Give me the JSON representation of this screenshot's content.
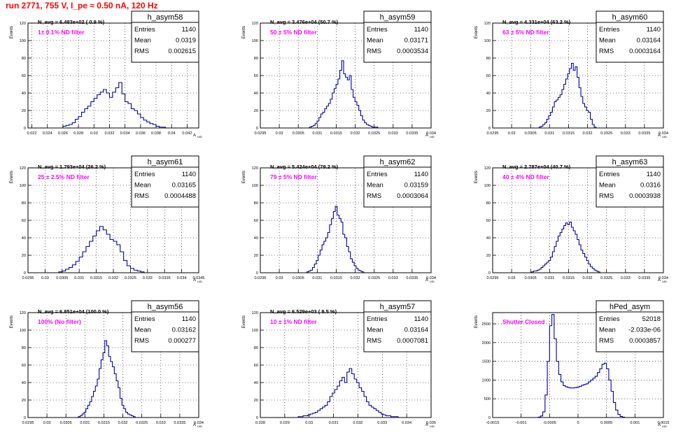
{
  "page_title": "run 2771,   755 V, I_pe ≈ 0.50 nA, 120 Hz",
  "colors": {
    "hist": "#000099",
    "title": "#ff0000",
    "note": "#ff00ff",
    "frame": "#000000"
  },
  "chart_data": [
    {
      "type": "bar",
      "name": "h_asym58",
      "stats": [
        [
          "Entries",
          "1140"
        ],
        [
          "Mean",
          "0.0319"
        ],
        [
          "RMS",
          "0.002615"
        ]
      ],
      "navg_label": "N_avg = 6.483e+02 ( 0.9 %)",
      "filter_label": "1± 0.1% ND filter",
      "xlabel": "A",
      "xlabel_sub": "UID",
      "ylabel": "Events",
      "xlim": [
        0.0215,
        0.0435
      ],
      "ylim": [
        0,
        120
      ],
      "xticks": [
        0.022,
        0.024,
        0.026,
        0.028,
        0.03,
        0.032,
        0.034,
        0.036,
        0.038,
        0.04,
        0.042
      ],
      "xtick_labels": [
        "0.022",
        "0.024",
        "0.026",
        "0.028",
        "0.03",
        "0.032",
        "0.034",
        "0.036",
        "0.038",
        "0.04",
        "0.042"
      ],
      "yticks": [
        0,
        20,
        40,
        60,
        80,
        100,
        120
      ],
      "x": [
        0.0262,
        0.0266,
        0.027,
        0.0274,
        0.0278,
        0.0282,
        0.0286,
        0.029,
        0.0294,
        0.0298,
        0.0302,
        0.0306,
        0.031,
        0.0314,
        0.0318,
        0.0322,
        0.0326,
        0.033,
        0.0334,
        0.0338,
        0.0342,
        0.0346,
        0.035,
        0.0354,
        0.0358,
        0.0362,
        0.0366,
        0.037,
        0.0374,
        0.0378,
        0.0382,
        0.0386,
        0.039
      ],
      "values": [
        2,
        3,
        4,
        6,
        10,
        13,
        18,
        22,
        25,
        30,
        34,
        38,
        41,
        44,
        40,
        35,
        41,
        46,
        52,
        39,
        30,
        28,
        22,
        20,
        16,
        12,
        9,
        7,
        5,
        4,
        2,
        1,
        1
      ]
    },
    {
      "type": "bar",
      "name": "h_asym59",
      "stats": [
        [
          "Entries",
          "1140"
        ],
        [
          "Mean",
          "0.03171"
        ],
        [
          "RMS",
          "0.0003534"
        ]
      ],
      "navg_label": "N_avg = 3.476e+04 (50.7 %)",
      "filter_label": "50 ± 5% ND filter",
      "xlabel": "A",
      "xlabel_sub": "UID",
      "ylabel": "Events",
      "xlim": [
        0.0295,
        0.034
      ],
      "ylim": [
        0,
        120
      ],
      "xticks": [
        0.0295,
        0.03,
        0.0305,
        0.031,
        0.0315,
        0.032,
        0.0325,
        0.033,
        0.0335,
        0.034
      ],
      "xtick_labels": [
        "0.0295",
        "0.03",
        "0.0305",
        "0.031",
        "0.0315",
        "0.032",
        "0.0325",
        "0.033",
        "0.0335",
        "0.034"
      ],
      "yticks": [
        0,
        20,
        40,
        60,
        80,
        100,
        120
      ],
      "x": [
        0.03082,
        0.03087,
        0.03092,
        0.03097,
        0.03102,
        0.03107,
        0.03112,
        0.03117,
        0.03122,
        0.03127,
        0.03132,
        0.03137,
        0.03142,
        0.03147,
        0.03152,
        0.03157,
        0.03162,
        0.03167,
        0.03172,
        0.03177,
        0.03182,
        0.03187,
        0.03192,
        0.03197,
        0.03202,
        0.03207,
        0.03212,
        0.03217,
        0.03222,
        0.03227,
        0.03232,
        0.03237,
        0.03242,
        0.03247,
        0.03252,
        0.03257
      ],
      "values": [
        1,
        2,
        3,
        5,
        8,
        12,
        16,
        18,
        22,
        25,
        28,
        33,
        40,
        45,
        50,
        56,
        66,
        77,
        62,
        58,
        55,
        60,
        44,
        35,
        30,
        26,
        20,
        14,
        9,
        6,
        4,
        3,
        2,
        1,
        1,
        1
      ]
    },
    {
      "type": "bar",
      "name": "h_asym60",
      "stats": [
        [
          "Entries",
          "1140"
        ],
        [
          "Mean",
          "0.03164"
        ],
        [
          "RMS",
          "0.0003164"
        ]
      ],
      "navg_label": "N_avg = 4.331e+04 (63.2 %)",
      "filter_label": "63 ± 5% ND filter",
      "xlabel": "A",
      "xlabel_sub": "UID",
      "ylabel": "Events",
      "xlim": [
        0.0295,
        0.034
      ],
      "ylim": [
        0,
        120
      ],
      "xticks": [
        0.0295,
        0.03,
        0.0305,
        0.031,
        0.0315,
        0.032,
        0.0325,
        0.033,
        0.0335,
        0.034
      ],
      "xtick_labels": [
        "0.0295",
        "0.03",
        "0.0305",
        "0.031",
        "0.0315",
        "0.032",
        "0.0325",
        "0.033",
        "0.0335",
        "0.034"
      ],
      "yticks": [
        0,
        20,
        40,
        60,
        80,
        100,
        120
      ],
      "x": [
        0.03075,
        0.0308,
        0.03085,
        0.0309,
        0.03095,
        0.031,
        0.03105,
        0.0311,
        0.03115,
        0.0312,
        0.03125,
        0.0313,
        0.03135,
        0.0314,
        0.03145,
        0.0315,
        0.03155,
        0.0316,
        0.03165,
        0.0317,
        0.03175,
        0.0318,
        0.03185,
        0.0319,
        0.03195,
        0.032,
        0.03205,
        0.0321,
        0.03215,
        0.0322
      ],
      "values": [
        1,
        2,
        4,
        6,
        10,
        14,
        18,
        24,
        30,
        32,
        35,
        38,
        44,
        50,
        56,
        62,
        68,
        74,
        66,
        70,
        58,
        46,
        36,
        28,
        24,
        20,
        18,
        10,
        4,
        1
      ]
    },
    {
      "type": "bar",
      "name": "h_asym61",
      "stats": [
        [
          "Entries",
          "1140"
        ],
        [
          "Mean",
          "0.03165"
        ],
        [
          "RMS",
          "0.0004488"
        ]
      ],
      "navg_label": "N_avg = 1.793e+04 (26.2 %)",
      "filter_label": "25 ± 2.5% ND filter",
      "xlabel": "A",
      "xlabel_sub": "UID",
      "ylabel": "Events",
      "xlim": [
        0.0295,
        0.0345
      ],
      "ylim": [
        0,
        120
      ],
      "xticks": [
        0.0295,
        0.03,
        0.0305,
        0.031,
        0.0315,
        0.032,
        0.0325,
        0.033,
        0.0335,
        0.034,
        0.0345
      ],
      "xtick_labels": [
        "0.0295",
        "0.03",
        "0.0305",
        "0.031",
        "0.0315",
        "0.032",
        "0.0325",
        "0.033",
        "0.0335",
        "0.034",
        "0.0345"
      ],
      "yticks": [
        0,
        20,
        40,
        60,
        80,
        100,
        120
      ],
      "x": [
        0.03045,
        0.03055,
        0.03065,
        0.03075,
        0.03085,
        0.03095,
        0.03105,
        0.03115,
        0.03125,
        0.03135,
        0.03145,
        0.03155,
        0.03165,
        0.03175,
        0.03185,
        0.03195,
        0.03205,
        0.03215,
        0.03225,
        0.03235,
        0.03245,
        0.03255,
        0.03265,
        0.03275,
        0.03285
      ],
      "values": [
        1,
        2,
        4,
        6,
        9,
        13,
        18,
        24,
        30,
        36,
        42,
        48,
        53,
        49,
        44,
        38,
        36,
        32,
        24,
        14,
        8,
        5,
        3,
        2,
        1
      ]
    },
    {
      "type": "bar",
      "name": "h_asym62",
      "stats": [
        [
          "Entries",
          "1140"
        ],
        [
          "Mean",
          "0.03159"
        ],
        [
          "RMS",
          "0.0003064"
        ]
      ],
      "navg_label": "N_avg = 5.424e+04 (79.2 %)",
      "filter_label": "79 ± 5% ND filter",
      "xlabel": "A",
      "xlabel_sub": "UID",
      "ylabel": "Events",
      "xlim": [
        0.0295,
        0.034
      ],
      "ylim": [
        0,
        120
      ],
      "xticks": [
        0.0295,
        0.03,
        0.0305,
        0.031,
        0.0315,
        0.032,
        0.0325,
        0.033,
        0.0335,
        0.034
      ],
      "xtick_labels": [
        "0.0295",
        "0.03",
        "0.0305",
        "0.031",
        "0.0315",
        "0.032",
        "0.0325",
        "0.033",
        "0.0335",
        "0.034"
      ],
      "yticks": [
        0,
        20,
        40,
        60,
        80,
        100,
        120
      ],
      "x": [
        0.03075,
        0.0308,
        0.03085,
        0.0309,
        0.03095,
        0.031,
        0.03105,
        0.0311,
        0.03115,
        0.0312,
        0.03125,
        0.0313,
        0.03135,
        0.0314,
        0.03145,
        0.0315,
        0.03155,
        0.0316,
        0.03165,
        0.0317,
        0.03175,
        0.0318,
        0.03185,
        0.0319,
        0.03195,
        0.032,
        0.03205,
        0.0321,
        0.03215,
        0.0322
      ],
      "values": [
        1,
        2,
        3,
        6,
        10,
        14,
        20,
        26,
        32,
        36,
        40,
        46,
        55,
        62,
        70,
        76,
        66,
        62,
        58,
        44,
        40,
        30,
        24,
        16,
        12,
        8,
        5,
        3,
        2,
        1
      ]
    },
    {
      "type": "bar",
      "name": "h_asym63",
      "stats": [
        [
          "Entries",
          "1140"
        ],
        [
          "Mean",
          "0.0316"
        ],
        [
          "RMS",
          "0.0003938"
        ]
      ],
      "navg_label": "N_avg = 2.787e+04 (40.7 %)",
      "filter_label": "40 ± 4% ND filter",
      "xlabel": "A",
      "xlabel_sub": "UID",
      "ylabel": "Events",
      "xlim": [
        0.0295,
        0.034
      ],
      "ylim": [
        0,
        120
      ],
      "xticks": [
        0.0295,
        0.03,
        0.0305,
        0.031,
        0.0315,
        0.032,
        0.0325,
        0.033,
        0.0335,
        0.034
      ],
      "xtick_labels": [
        "0.0295",
        "0.03",
        "0.0305",
        "0.031",
        "0.0315",
        "0.032",
        "0.0325",
        "0.033",
        "0.0335",
        "0.034"
      ],
      "yticks": [
        0,
        20,
        40,
        60,
        80,
        100,
        120
      ],
      "x": [
        0.03055,
        0.0306,
        0.03065,
        0.0307,
        0.03075,
        0.0308,
        0.03085,
        0.0309,
        0.03095,
        0.031,
        0.03105,
        0.0311,
        0.03115,
        0.0312,
        0.03125,
        0.0313,
        0.03135,
        0.0314,
        0.03145,
        0.0315,
        0.03155,
        0.0316,
        0.03165,
        0.0317,
        0.03175,
        0.0318,
        0.03185,
        0.0319,
        0.03195,
        0.032,
        0.03205,
        0.0321,
        0.03215,
        0.0322,
        0.03225,
        0.0323
      ],
      "values": [
        1,
        2,
        2,
        3,
        4,
        6,
        8,
        10,
        12,
        14,
        18,
        24,
        30,
        36,
        42,
        46,
        50,
        54,
        57,
        55,
        58,
        52,
        48,
        44,
        38,
        32,
        26,
        22,
        18,
        14,
        10,
        7,
        5,
        3,
        2,
        1
      ]
    },
    {
      "type": "bar",
      "name": "h_asym56",
      "stats": [
        [
          "Entries",
          "1140"
        ],
        [
          "Mean",
          "0.03162"
        ],
        [
          "RMS",
          "0.000277"
        ]
      ],
      "navg_label": "N_avg = 6.851e+04 (100.0 %)",
      "filter_label": "100% (No filter)",
      "xlabel": "A",
      "xlabel_sub": "UID",
      "ylabel": "Events",
      "xlim": [
        0.0295,
        0.034
      ],
      "ylim": [
        0,
        120
      ],
      "xticks": [
        0.0295,
        0.03,
        0.0305,
        0.031,
        0.0315,
        0.032,
        0.0325,
        0.033,
        0.0335,
        0.034
      ],
      "xtick_labels": [
        "0.0295",
        "0.03",
        "0.0305",
        "0.031",
        "0.0315",
        "0.032",
        "0.0325",
        "0.033",
        "0.0335",
        "0.034"
      ],
      "yticks": [
        0,
        20,
        40,
        60,
        80,
        100,
        120
      ],
      "x": [
        0.03085,
        0.0309,
        0.03095,
        0.031,
        0.03105,
        0.0311,
        0.03115,
        0.0312,
        0.03125,
        0.0313,
        0.03135,
        0.0314,
        0.03145,
        0.0315,
        0.03155,
        0.0316,
        0.03165,
        0.0317,
        0.03175,
        0.0318,
        0.03185,
        0.0319,
        0.03195,
        0.032,
        0.03205,
        0.0321,
        0.03215,
        0.0322,
        0.03225,
        0.0323
      ],
      "values": [
        1,
        2,
        4,
        6,
        10,
        14,
        18,
        24,
        30,
        36,
        44,
        56,
        66,
        74,
        88,
        82,
        70,
        64,
        58,
        50,
        42,
        34,
        22,
        14,
        10,
        6,
        4,
        3,
        2,
        1
      ]
    },
    {
      "type": "bar",
      "name": "h_asym57",
      "stats": [
        [
          "Entries",
          "1140"
        ],
        [
          "Mean",
          "0.03164"
        ],
        [
          "RMS",
          "0.0007081"
        ]
      ],
      "navg_label": "N_avg = 6.529e+03 ( 9.5 %)",
      "filter_label": "10 ± 1% ND filter",
      "xlabel": "A",
      "xlabel_sub": "UID",
      "ylabel": "Events",
      "xlim": [
        0.028,
        0.035
      ],
      "ylim": [
        0,
        120
      ],
      "xticks": [
        0.028,
        0.029,
        0.03,
        0.031,
        0.032,
        0.033,
        0.034,
        0.035
      ],
      "xtick_labels": [
        "0.028",
        "0.029",
        "0.03",
        "0.031",
        "0.032",
        "0.033",
        "0.034",
        "0.035"
      ],
      "yticks": [
        0,
        20,
        40,
        60,
        80,
        100,
        120
      ],
      "x": [
        0.0296,
        0.0297,
        0.0298,
        0.0299,
        0.03,
        0.0301,
        0.0302,
        0.0303,
        0.0304,
        0.0305,
        0.0306,
        0.0307,
        0.0308,
        0.0309,
        0.031,
        0.0311,
        0.0312,
        0.0313,
        0.0314,
        0.0315,
        0.0316,
        0.0317,
        0.0318,
        0.0319,
        0.032,
        0.0321,
        0.0322,
        0.0323,
        0.0324,
        0.0325,
        0.0326,
        0.0327,
        0.0328,
        0.0329,
        0.033,
        0.0331,
        0.0332,
        0.0333,
        0.0334,
        0.0335,
        0.0336
      ],
      "values": [
        1,
        1,
        2,
        2,
        3,
        4,
        5,
        6,
        8,
        10,
        12,
        14,
        18,
        24,
        28,
        32,
        36,
        42,
        46,
        40,
        52,
        56,
        50,
        44,
        40,
        34,
        30,
        24,
        18,
        14,
        12,
        10,
        8,
        6,
        4,
        3,
        2,
        2,
        1,
        1,
        1
      ]
    },
    {
      "type": "bar",
      "name": "hPed_asym",
      "stats": [
        [
          "Entries",
          "52018"
        ],
        [
          "Mean",
          "-2.033e-06"
        ],
        [
          "RMS",
          "0.0003857"
        ]
      ],
      "filter_label": "Shutter Closed",
      "xlabel": "A",
      "xlabel_sub": "UID",
      "ylabel": "Events",
      "xlim": [
        -0.0015,
        0.0015
      ],
      "ylim": [
        0,
        2800
      ],
      "xticks": [
        -0.0015,
        -0.001,
        -0.0005,
        0,
        0.0005,
        0.001,
        0.0015
      ],
      "xtick_labels": [
        "-0.0015",
        "-0.001",
        "-0.0005",
        "0",
        "0.0005",
        "0.001",
        "0.0015"
      ],
      "yticks": [
        0,
        500,
        1000,
        1500,
        2000,
        2500
      ],
      "x": [
        -0.00068,
        -0.00064,
        -0.0006,
        -0.00056,
        -0.00052,
        -0.00048,
        -0.00044,
        -0.0004,
        -0.00036,
        -0.00032,
        -0.00028,
        -0.00024,
        -0.0002,
        -0.00016,
        -0.00012,
        -8e-05,
        -4e-05,
        0.0,
        4e-05,
        8e-05,
        0.00012,
        0.00016,
        0.0002,
        0.00024,
        0.00028,
        0.00032,
        0.00036,
        0.0004,
        0.00044,
        0.00048,
        0.00052,
        0.00056,
        0.0006,
        0.00064,
        0.00068,
        0.00072,
        0.00076,
        0.0008
      ],
      "values": [
        10,
        40,
        150,
        600,
        1500,
        2450,
        2750,
        2100,
        1500,
        1150,
        950,
        850,
        820,
        800,
        790,
        790,
        800,
        810,
        830,
        860,
        880,
        900,
        950,
        1000,
        1050,
        1100,
        1200,
        1300,
        1420,
        1450,
        1300,
        1000,
        700,
        400,
        200,
        80,
        30,
        10
      ]
    }
  ]
}
